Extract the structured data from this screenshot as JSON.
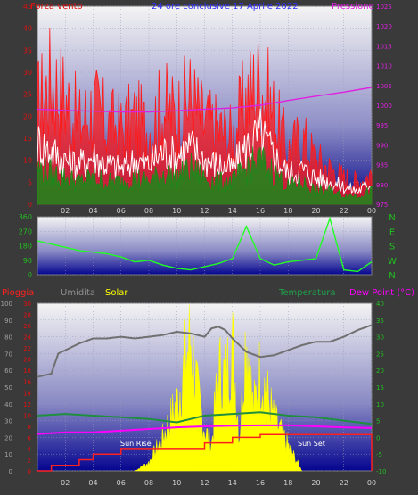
{
  "colors": {
    "wind": "#ff1a1a",
    "gust": "#ffffff",
    "avg": "#1a8a1a",
    "pressure": "#e020e0",
    "direction": "#22ff22",
    "rain": "#ff2020",
    "humidity": "#707070",
    "solar": "#ffff00",
    "temperature": "#1f8f3f",
    "dewpoint": "#ff00ff",
    "axisRed": "#e01010",
    "axisMagenta": "#e020e0",
    "axisGreen": "#20c020"
  },
  "chart_data": [
    {
      "type": "line",
      "title": "24 ore conclusive  17 Aprile 2022",
      "left_label": "Forza vento",
      "right_label": "Pressione",
      "ylim": [
        0,
        45
      ],
      "y_ticks": [
        "0",
        "5",
        "10",
        "15",
        "20",
        "25",
        "30",
        "35",
        "40",
        "45"
      ],
      "y2lim": [
        975,
        1025
      ],
      "y2_ticks": [
        "975",
        "980",
        "985",
        "990",
        "995",
        "1000",
        "1005",
        "1010",
        "1015",
        "1020",
        "1025"
      ],
      "x_ticks": [
        "02",
        "04",
        "06",
        "08",
        "10",
        "12",
        "14",
        "16",
        "18",
        "20",
        "22",
        "00"
      ],
      "series": [
        {
          "name": "wind",
          "x": [
            0,
            1,
            2,
            3,
            4,
            5,
            6,
            7,
            8,
            9,
            10,
            11,
            12,
            13,
            14,
            15,
            16,
            17,
            18,
            19,
            20,
            21,
            22,
            23,
            24
          ],
          "values": [
            22,
            28,
            24,
            18,
            22,
            18,
            17,
            19,
            17,
            22,
            20,
            24,
            18,
            17,
            15,
            24,
            28,
            20,
            12,
            15,
            10,
            8,
            6,
            5,
            7
          ]
        },
        {
          "name": "gust",
          "x": [
            0,
            1,
            2,
            3,
            4,
            5,
            6,
            7,
            8,
            9,
            10,
            11,
            12,
            13,
            14,
            15,
            16,
            17,
            18,
            19,
            20,
            21,
            22,
            23,
            24
          ],
          "values": [
            14,
            12,
            10,
            9,
            11,
            9,
            8,
            10,
            9,
            12,
            11,
            13,
            10,
            9,
            8,
            13,
            16,
            11,
            7,
            8,
            6,
            5,
            4,
            3,
            5
          ]
        },
        {
          "name": "avg",
          "x": [
            0,
            1,
            2,
            3,
            4,
            5,
            6,
            7,
            8,
            9,
            10,
            11,
            12,
            13,
            14,
            15,
            16,
            17,
            18,
            19,
            20,
            21,
            22,
            23,
            24
          ],
          "values": [
            8,
            7,
            6,
            5,
            6,
            5,
            5,
            6,
            5,
            7,
            6,
            8,
            6,
            5,
            5,
            8,
            10,
            7,
            4,
            5,
            3,
            3,
            2,
            2,
            3
          ]
        },
        {
          "name": "pressure",
          "x": [
            0,
            2,
            4,
            6,
            8,
            10,
            12,
            14,
            16,
            18,
            20,
            22,
            24
          ],
          "values": [
            999,
            998.7,
            998.5,
            998.3,
            998.3,
            998.6,
            999,
            999.3,
            1000,
            1001.2,
            1002.3,
            1003.3,
            1004.5
          ]
        }
      ]
    },
    {
      "type": "line",
      "ylim": [
        0,
        360
      ],
      "y_ticks": [
        "0",
        "90",
        "180",
        "270",
        "360"
      ],
      "right_ticks": [
        "N",
        "W",
        "S",
        "E",
        "N"
      ],
      "x_ticks": [],
      "series": [
        {
          "name": "direction",
          "x": [
            0,
            1,
            2,
            3,
            4,
            5,
            6,
            7,
            8,
            9,
            10,
            11,
            12,
            13,
            14,
            15,
            16,
            17,
            18,
            19,
            20,
            21,
            22,
            23,
            24
          ],
          "values": [
            210,
            190,
            170,
            150,
            140,
            130,
            110,
            80,
            90,
            60,
            40,
            30,
            50,
            70,
            100,
            300,
            100,
            60,
            80,
            90,
            100,
            350,
            30,
            20,
            80
          ]
        }
      ]
    },
    {
      "type": "line",
      "labels": {
        "rain": "Pioggia",
        "humidity": "Umidita",
        "solar": "Solar",
        "temperature": "Temperatura",
        "dewpoint": "Dew Point (°C)"
      },
      "left_ticks": [
        "0",
        "10",
        "20",
        "30",
        "40",
        "50",
        "60",
        "70",
        "80",
        "90",
        "100"
      ],
      "rain_ticks": [
        "0",
        "2",
        "4",
        "6",
        "8",
        "10",
        "12",
        "14",
        "16",
        "18",
        "20",
        "22",
        "24",
        "26",
        "28",
        "30"
      ],
      "right_ticks": [
        "-10",
        "-5",
        "0",
        "5",
        "10",
        "15",
        "20",
        "25",
        "30",
        "35",
        "40"
      ],
      "x_ticks": [
        "02",
        "04",
        "06",
        "08",
        "10",
        "12",
        "14",
        "16",
        "18",
        "20",
        "22",
        "00"
      ],
      "annotations": {
        "sunrise": "Sun Rise",
        "sunset": "Sun Set",
        "sunlabel": "Sun Set"
      },
      "series": [
        {
          "name": "humidity",
          "x": [
            0,
            0.5,
            1,
            1.5,
            2,
            3,
            4,
            5,
            6,
            7,
            8,
            9,
            10,
            11,
            12,
            12.5,
            13,
            13.5,
            14,
            15,
            16,
            17,
            18,
            19,
            20,
            21,
            22,
            23,
            24
          ],
          "values": [
            56,
            57,
            58,
            70,
            72,
            76,
            79,
            79,
            80,
            79,
            80,
            81,
            83,
            82,
            80,
            85,
            86,
            84,
            79,
            71,
            68,
            69,
            72,
            75,
            77,
            77,
            80,
            84,
            87
          ]
        },
        {
          "name": "temperature",
          "x": [
            0,
            2,
            4,
            6,
            8,
            10,
            12,
            14,
            16,
            18,
            20,
            22,
            24
          ],
          "values": [
            6.5,
            7,
            6.5,
            6,
            5.5,
            4.5,
            6.5,
            7,
            7.5,
            6.5,
            6,
            5,
            4
          ]
        },
        {
          "name": "dewpoint",
          "x": [
            0,
            2,
            4,
            6,
            8,
            10,
            12,
            14,
            16,
            18,
            20,
            22,
            24
          ],
          "values": [
            1,
            1.5,
            1.5,
            2,
            2.5,
            3,
            3.3,
            3.5,
            3.6,
            3.6,
            3.3,
            3,
            2.8
          ]
        },
        {
          "name": "rain",
          "x": [
            0,
            1,
            3,
            4,
            6,
            8,
            10,
            12,
            14,
            16,
            17,
            18,
            20,
            22,
            24
          ],
          "values": [
            0,
            1,
            2,
            3,
            4,
            4,
            4,
            5,
            6,
            6.5,
            6.5,
            6.5,
            6.5,
            6.5,
            6.5
          ]
        },
        {
          "name": "solar",
          "x": [
            7,
            8,
            9,
            10,
            11,
            11.5,
            12,
            12.5,
            13,
            13.5,
            14,
            14.5,
            15,
            15.5,
            16,
            17,
            18,
            19
          ],
          "values": [
            0,
            5,
            20,
            40,
            80,
            45,
            25,
            15,
            60,
            55,
            75,
            20,
            85,
            35,
            60,
            30,
            15,
            0
          ]
        }
      ]
    }
  ]
}
